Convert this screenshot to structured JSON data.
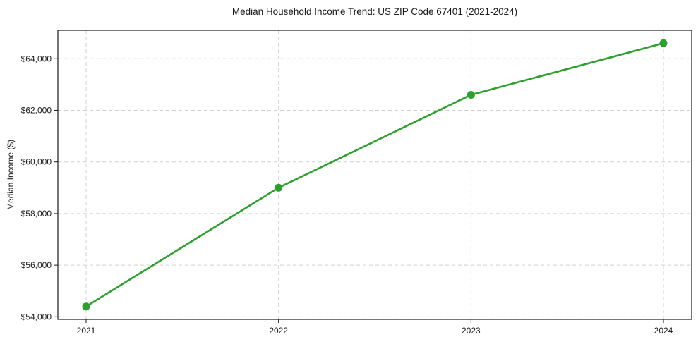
{
  "title": "Median Household Income Trend: US ZIP Code 67401 (2021-2024)",
  "chart_data": {
    "type": "line",
    "title": "Median Household Income Trend: US ZIP Code 67401 (2021-2024)",
    "xlabel": "",
    "ylabel": "Median Income ($)",
    "categories": [
      "2021",
      "2022",
      "2023",
      "2024"
    ],
    "series": [
      {
        "name": "Median Household Income",
        "values": [
          54400,
          59000,
          62600,
          64600
        ]
      }
    ],
    "ylim": [
      53900,
      65100
    ],
    "yticks": [
      54000,
      56000,
      58000,
      60000,
      62000,
      64000
    ],
    "ytick_labels": [
      "$54,000",
      "$56,000",
      "$58,000",
      "$60,000",
      "$62,000",
      "$64,000"
    ],
    "xtick_labels": [
      "2021",
      "2022",
      "2023",
      "2024"
    ],
    "grid": true,
    "grid_style": "dashed",
    "legend": "none",
    "line_color": "#2ca02c",
    "marker_color": "#2ca02c",
    "marker_shape": "circle",
    "grid_color": "#d0d0d0",
    "spine_color": "#1a1a1a",
    "text_color": "#1a1a1a",
    "background_color": "#ffffff"
  }
}
